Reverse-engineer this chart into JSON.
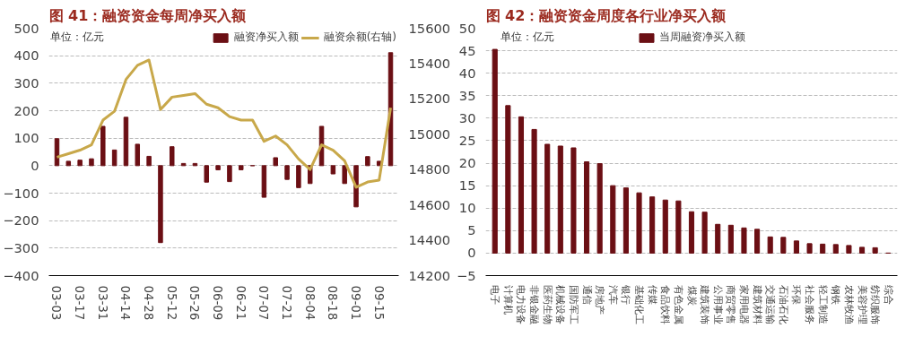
{
  "chart_data": [
    {
      "type": "bar",
      "title": "图 41：融资资金每周净买入额",
      "annotations": [
        "单位：亿元"
      ],
      "categories": [
        "03-03",
        null,
        "03-17",
        null,
        "03-31",
        null,
        "04-14",
        null,
        "04-28",
        null,
        "05-12",
        null,
        "05-26",
        null,
        "06-09",
        null,
        "06-21",
        null,
        "07-07",
        null,
        "07-21",
        null,
        "08-04",
        null,
        "08-18",
        null,
        "09-01",
        null,
        "09-15",
        null
      ],
      "series": [
        {
          "name": "融资净买入额",
          "color": "#6b0f14",
          "values": [
            98,
            16,
            20,
            25,
            143,
            57,
            176,
            78,
            34,
            -280,
            69,
            8,
            8,
            -60,
            -15,
            -58,
            -15,
            0,
            -115,
            29,
            -50,
            -80,
            -65,
            143,
            -30,
            -65,
            -150,
            33,
            16,
            411
          ]
        },
        {
          "name": "融资余额(右轴)",
          "type": "line",
          "axis": "y2",
          "color": "#c8a84a",
          "values": [
            14870,
            14890,
            14910,
            14940,
            15080,
            15130,
            15310,
            15390,
            15420,
            15140,
            15210,
            15220,
            15230,
            15170,
            15150,
            15100,
            15080,
            15080,
            14960,
            14990,
            14940,
            14860,
            14800,
            14940,
            14910,
            14850,
            14700,
            14730,
            14740,
            15150
          ]
        }
      ],
      "ylim": [
        -400,
        500
      ],
      "yticks": [
        -400,
        -300,
        -200,
        -100,
        0,
        100,
        200,
        300,
        400,
        500
      ],
      "y2lim": [
        14200,
        15600
      ],
      "y2ticks": [
        14200,
        14400,
        14600,
        14800,
        15000,
        15200,
        15400,
        15600
      ],
      "grid": "y",
      "legend": "top"
    },
    {
      "type": "bar",
      "title": "图 42：融资资金周度各行业净买入额",
      "annotations": [
        "单位：亿元"
      ],
      "categories": [
        "电子",
        "计算机",
        "电力设备",
        "非银金融",
        "医药生物",
        "机械设备",
        "国防军工",
        "通信",
        "房地产",
        "汽车",
        "银行",
        "基础化工",
        "传媒",
        "食品饮料",
        "有色金属",
        "煤炭",
        "建筑装饰",
        "公用事业",
        "商贸零售",
        "家用电器",
        "建筑材料",
        "交通运输",
        "石油石化",
        "环保",
        "社会服务",
        "轻工制造",
        "钢铁",
        "农林牧渔",
        "美容护理",
        "纺织服饰",
        "综合"
      ],
      "series": [
        {
          "name": "当周融资净买入额",
          "color": "#6b0f14",
          "values": [
            45.3,
            32.8,
            30.3,
            27.5,
            24.2,
            23.8,
            23.4,
            20.3,
            19.9,
            15.0,
            14.5,
            13.4,
            12.5,
            11.8,
            11.6,
            9.2,
            9.1,
            6.4,
            6.2,
            5.6,
            5.3,
            3.6,
            3.5,
            2.7,
            2.1,
            2.0,
            1.9,
            1.7,
            1.3,
            1.2,
            0
          ]
        }
      ],
      "ylim": [
        -5,
        50
      ],
      "yticks": [
        -5,
        0,
        5,
        10,
        15,
        20,
        25,
        30,
        35,
        40,
        45,
        50
      ],
      "grid": "y",
      "legend": "top"
    }
  ]
}
